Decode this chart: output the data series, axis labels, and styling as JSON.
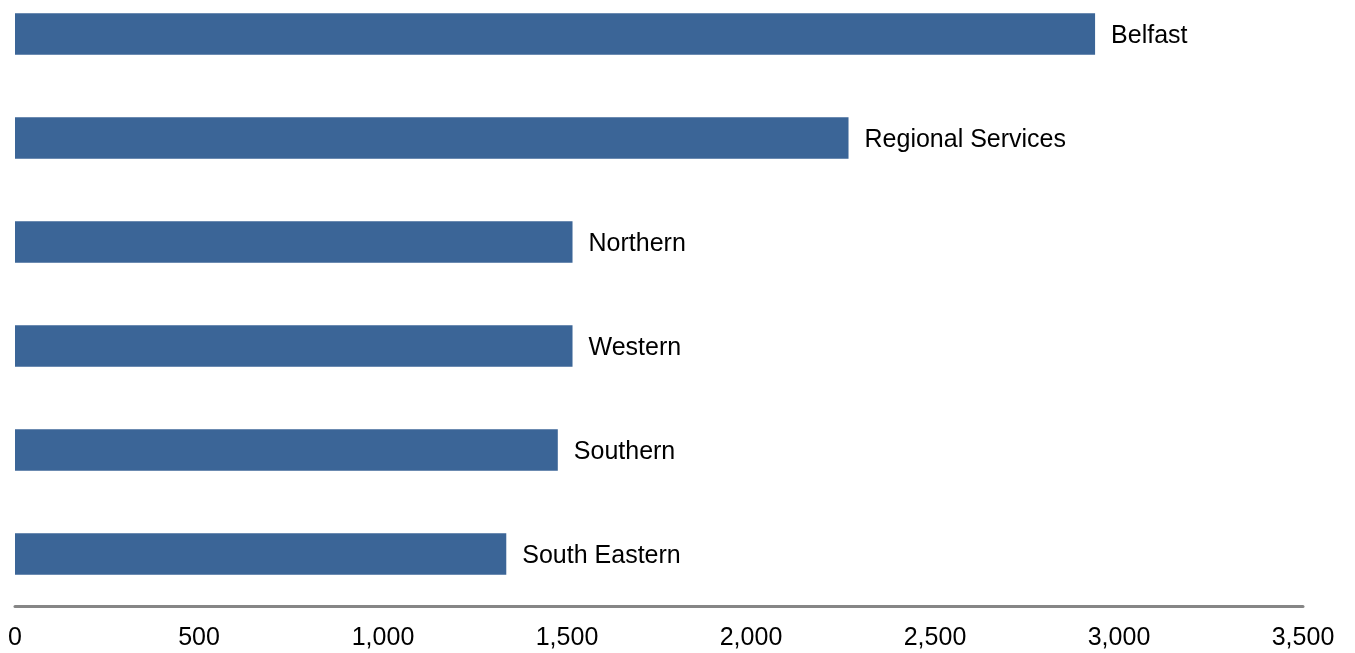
{
  "chart_data": {
    "type": "bar",
    "orientation": "horizontal",
    "categories": [
      "Belfast",
      "Regional Services",
      "Northern",
      "Western",
      "Southern",
      "South Eastern"
    ],
    "values": [
      2935,
      2265,
      1515,
      1515,
      1475,
      1335
    ],
    "color": "#3b6597",
    "xlim": [
      0,
      3500
    ],
    "xticks": [
      0,
      500,
      {
        "value": 1000,
        "label": "1,000"
      },
      {
        "value": 1500,
        "label": "1,500"
      },
      {
        "value": 2000,
        "label": "2,000"
      },
      {
        "value": 2500,
        "label": "2,500"
      },
      {
        "value": 3000,
        "label": "3,000"
      },
      {
        "value": 3500,
        "label": "3,500"
      }
    ],
    "grid": false
  }
}
